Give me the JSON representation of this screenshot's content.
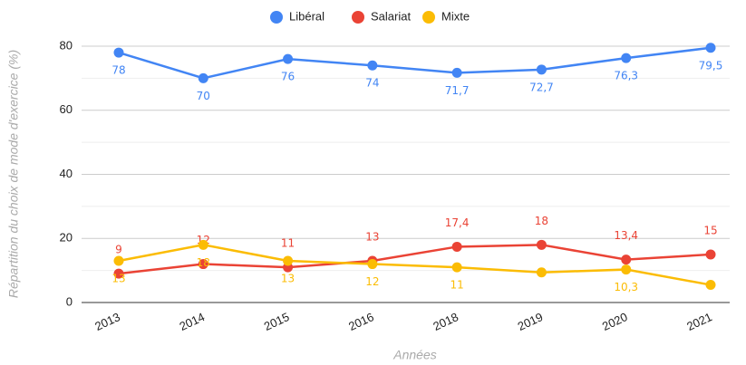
{
  "chart_data": {
    "type": "line",
    "x_label": "Années",
    "y_label": "Répartition du choix de mode d'exercice (%)",
    "categories": [
      "2013",
      "2014",
      "2015",
      "2016",
      "2018",
      "2019",
      "2020",
      "2021"
    ],
    "series": [
      {
        "name": "Libéral",
        "color": "#4285f4",
        "values": [
          78,
          70,
          76,
          74,
          71.7,
          72.7,
          76.3,
          79.5
        ],
        "value_labels": [
          "78",
          "70",
          "76",
          "74",
          "71,7",
          "72,7",
          "76,3",
          "79,5"
        ]
      },
      {
        "name": "Salariat",
        "color": "#ea4335",
        "values": [
          9,
          12,
          11,
          13,
          17.4,
          18,
          13.4,
          15
        ],
        "value_labels": [
          "9",
          "12",
          "11",
          "13",
          "17,4",
          "18",
          "13,4",
          "15"
        ]
      },
      {
        "name": "Mixte",
        "color": "#fbbc04",
        "values": [
          13,
          18,
          13,
          12,
          11,
          9.4,
          10.3,
          5.5
        ],
        "value_labels": [
          "13",
          "18",
          "13",
          "12",
          "11",
          null,
          "10,3",
          null
        ]
      }
    ],
    "ylim": [
      0,
      80
    ],
    "yticks": [
      0,
      20,
      40,
      60,
      80
    ],
    "minor_yticks": [
      10,
      30,
      50,
      70
    ],
    "grid": true,
    "legend": "top"
  }
}
